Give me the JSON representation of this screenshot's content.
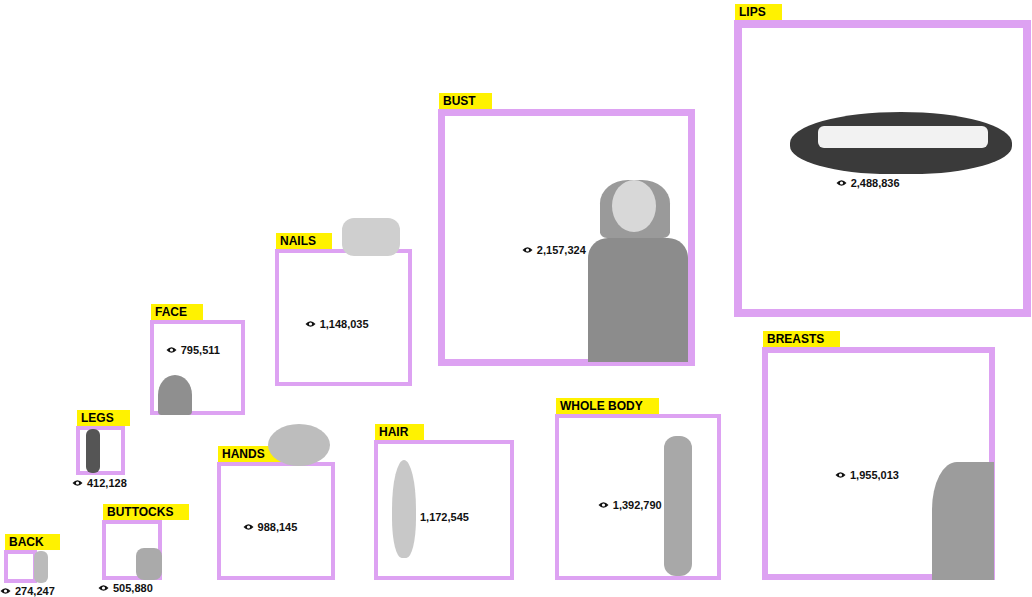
{
  "chart_data": {
    "type": "square",
    "categories": [
      "BACK",
      "LEGS",
      "BUTTOCKS",
      "FACE",
      "HANDS",
      "NAILS",
      "HAIR",
      "WHOLE BODY",
      "BREASTS",
      "BUST",
      "LIPS"
    ],
    "values": [
      274247,
      412128,
      505880,
      795511,
      988145,
      1148035,
      1172545,
      1392790,
      1955013,
      2157324,
      2488836
    ],
    "value_labels": [
      "274,247",
      "412,128",
      "505,880",
      "795,511",
      "988,145",
      "1,148,035",
      "1,172,545",
      "1,392,790",
      "1,955,013",
      "2,157,324",
      "2,488,836"
    ],
    "color": "#dda2f2",
    "data_labels": true
  }
}
